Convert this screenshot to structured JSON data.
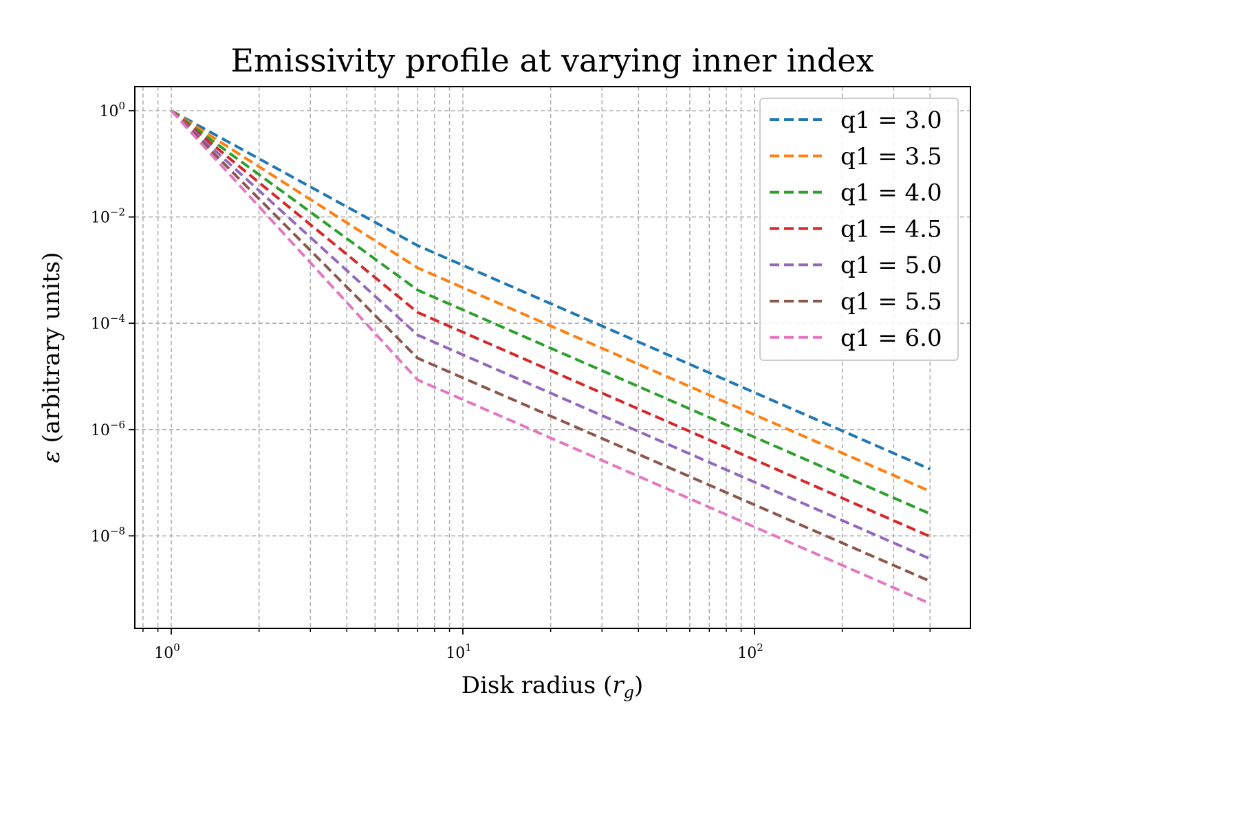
{
  "chart_data": {
    "type": "line",
    "title": "Emissivity profile at varying inner index",
    "xlabel": "Disk radius (r_g)",
    "xlabel_parts": {
      "prefix": "Disk radius (",
      "symbol": "r",
      "subscript": "g",
      "suffix": ")"
    },
    "ylabel": "ε (arbitrary units)",
    "ylabel_parts": {
      "symbol": "ε",
      "text": " (arbitrary units)"
    },
    "xscale": "log",
    "yscale": "log",
    "xlim": [
      0.8,
      480
    ],
    "ylim": [
      1e-10,
      2.5
    ],
    "grid": true,
    "line_style": "dashed",
    "legend_position": "upper right",
    "x_ticks": [
      {
        "base": "10",
        "exp": "0"
      },
      {
        "base": "10",
        "exp": "1"
      },
      {
        "base": "10",
        "exp": "2"
      }
    ],
    "y_ticks": [
      {
        "base": "10",
        "exp": "0"
      },
      {
        "base": "10",
        "exp": "−2"
      },
      {
        "base": "10",
        "exp": "−4"
      },
      {
        "base": "10",
        "exp": "−6"
      },
      {
        "base": "10",
        "exp": "−8"
      }
    ],
    "x": [
      1,
      7,
      400
    ],
    "series": [
      {
        "name": "q1 = 3.0",
        "color": "#1f77b4",
        "values": [
          1,
          0.0029,
          1.8e-07
        ]
      },
      {
        "name": "q1 = 3.5",
        "color": "#ff7f0e",
        "values": [
          1,
          0.0011,
          6.9e-08
        ]
      },
      {
        "name": "q1 = 4.0",
        "color": "#2ca02c",
        "values": [
          1,
          0.00042,
          2.6e-08
        ]
      },
      {
        "name": "q1 = 4.5",
        "color": "#d62728",
        "values": [
          1,
          0.00016,
          9.7e-09
        ]
      },
      {
        "name": "q1 = 5.0",
        "color": "#9467bd",
        "values": [
          1,
          6e-05,
          3.7e-09
        ]
      },
      {
        "name": "q1 = 5.5",
        "color": "#8c564b",
        "values": [
          1,
          2.2e-05,
          1.4e-09
        ]
      },
      {
        "name": "q1 = 6.0",
        "color": "#e377c2",
        "values": [
          1,
          8.6e-06,
          5.3e-10
        ]
      }
    ]
  }
}
